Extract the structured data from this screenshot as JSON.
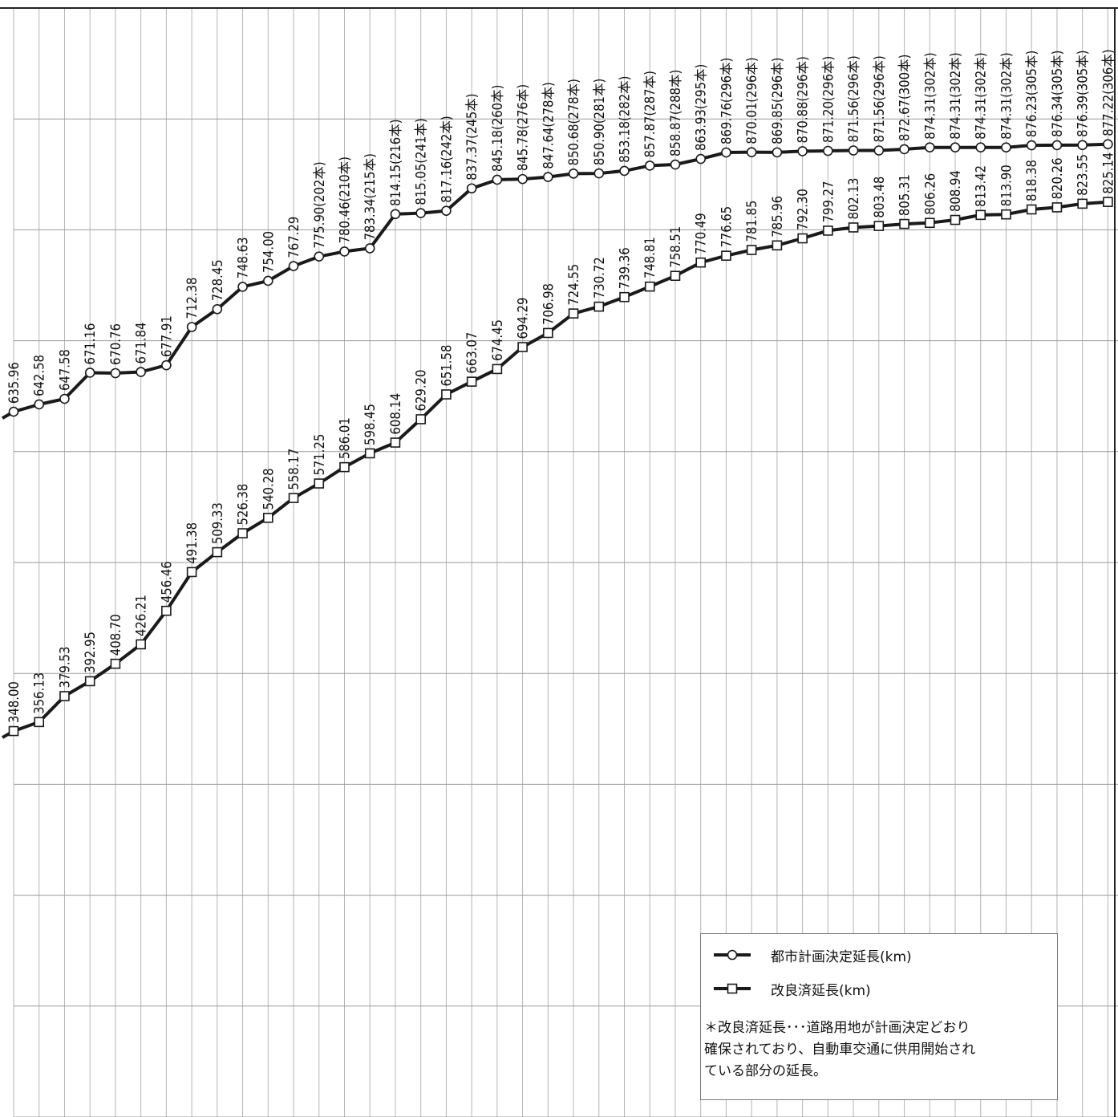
{
  "chart_data": {
    "type": "line",
    "ylim": [
      0,
      1000
    ],
    "grid": true,
    "legend_position": "bottom-right",
    "series": [
      {
        "name": "都市計画決定延長(km)",
        "marker": "circle",
        "values": [
          635.96,
          642.58,
          647.58,
          671.16,
          670.76,
          671.84,
          677.91,
          712.38,
          728.45,
          748.63,
          754.0,
          767.29,
          775.9,
          780.46,
          783.34,
          814.15,
          815.05,
          817.16,
          837.37,
          845.18,
          845.78,
          847.64,
          850.68,
          850.9,
          853.18,
          857.87,
          858.87,
          863.93,
          869.76,
          870.01,
          869.85,
          870.88,
          871.2,
          871.56,
          871.56,
          872.67,
          874.31,
          874.31,
          874.31,
          874.31,
          876.23,
          876.34,
          876.39,
          877.22
        ],
        "labels": [
          "635.96",
          "642.58",
          "647.58",
          "671.16",
          "670.76",
          "671.84",
          "677.91",
          "712.38",
          "728.45",
          "748.63",
          "754.00",
          "767.29",
          "775.90(202本)",
          "780.46(210本)",
          "783.34(215本)",
          "814.15(216本)",
          "815.05(241本)",
          "817.16(242本)",
          "837.37(245本)",
          "845.18(260本)",
          "845.78(276本)",
          "847.64(278本)",
          "850.68(278本)",
          "850.90(281本)",
          "853.18(282本)",
          "857.87(287本)",
          "858.87(288本)",
          "863.93(295本)",
          "869.76(296本)",
          "870.01(296本)",
          "869.85(296本)",
          "870.88(296本)",
          "871.20(296本)",
          "871.56(296本)",
          "871.56(296本)",
          "872.67(300本)",
          "874.31(302本)",
          "874.31(302本)",
          "874.31(302本)",
          "874.31(302本)",
          "876.23(305本)",
          "876.34(305本)",
          "876.39(305本)",
          "877.22(306本)"
        ]
      },
      {
        "name": "改良済延長(km)",
        "marker": "square",
        "values": [
          348.0,
          356.13,
          379.53,
          392.95,
          408.7,
          426.21,
          456.46,
          491.38,
          509.33,
          526.38,
          540.28,
          558.17,
          571.25,
          586.01,
          598.45,
          608.14,
          629.2,
          651.58,
          663.07,
          674.45,
          694.29,
          706.98,
          724.55,
          730.72,
          739.36,
          748.81,
          758.51,
          770.49,
          776.65,
          781.85,
          785.96,
          792.3,
          799.27,
          802.13,
          803.48,
          805.31,
          806.26,
          808.94,
          813.42,
          813.9,
          818.38,
          820.26,
          823.55,
          825.14
        ],
        "labels": [
          "348.00",
          "356.13",
          "379.53",
          "392.95",
          "408.70",
          "426.21",
          "456.46",
          "491.38",
          "509.33",
          "526.38",
          "540.28",
          "558.17",
          "571.25",
          "586.01",
          "598.45",
          "608.14",
          "629.20",
          "651.58",
          "663.07",
          "674.45",
          "694.29",
          "706.98",
          "724.55",
          "730.72",
          "739.36",
          "748.81",
          "758.51",
          "770.49",
          "776.65",
          "781.85",
          "785.96",
          "792.30",
          "799.27",
          "802.13",
          "803.48",
          "805.31",
          "806.26",
          "808.94",
          "813.42",
          "813.90",
          "818.38",
          "820.26",
          "823.55",
          "825.14"
        ]
      }
    ]
  },
  "legend": {
    "item1": "都市計画決定延長(km)",
    "item2": "改良済延長(km)",
    "note": [
      "＊改良済延長･･･道路用地が計画決定どおり",
      "確保されており、自動車交通に供用開始され",
      "ている部分の延長。"
    ]
  }
}
